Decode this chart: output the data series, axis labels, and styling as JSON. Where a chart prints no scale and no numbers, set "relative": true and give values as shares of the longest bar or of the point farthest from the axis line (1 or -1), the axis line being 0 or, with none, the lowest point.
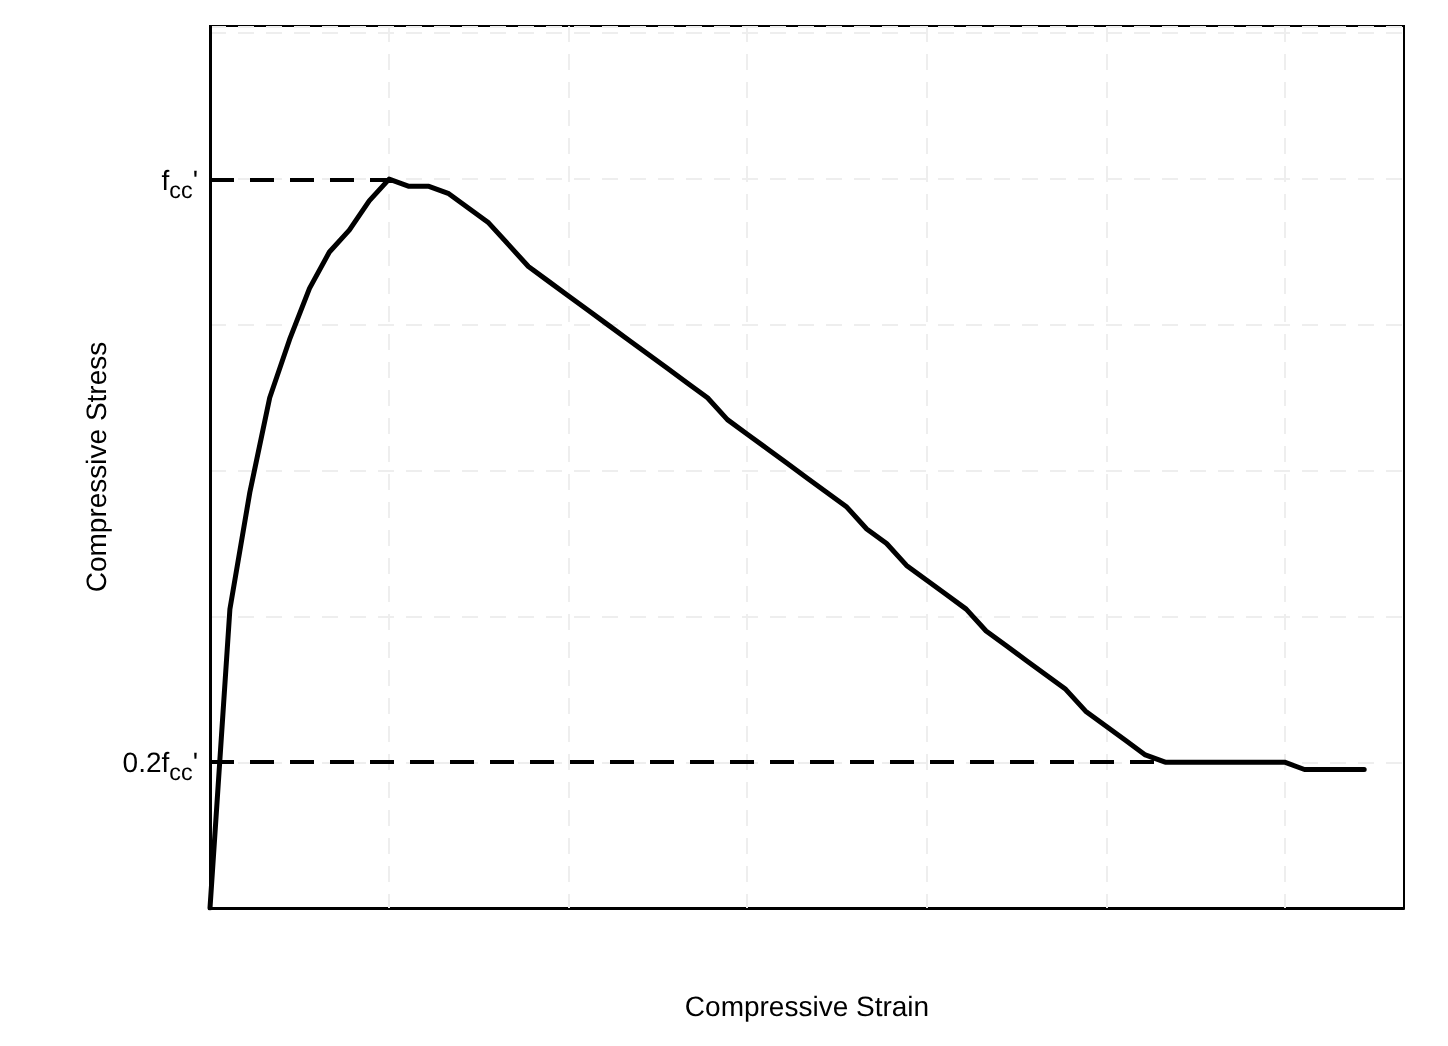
{
  "chart_data": {
    "type": "line",
    "xlabel": "Compressive Strain",
    "ylabel": "Compressive Stress",
    "categories": [
      null,
      null,
      null,
      null,
      null,
      null,
      null,
      null,
      null,
      null,
      null,
      null,
      null,
      null,
      null,
      null,
      null,
      null,
      null,
      null,
      null,
      null,
      null,
      null,
      null,
      null,
      null,
      null,
      null,
      null,
      null,
      null,
      null,
      null,
      null,
      null,
      null,
      null,
      null,
      null,
      null,
      null,
      null,
      null,
      null,
      null,
      null,
      null,
      null,
      null,
      null,
      null,
      null,
      null,
      null,
      null,
      null,
      null,
      null,
      null,
      null
    ],
    "series": [
      {
        "color": "#000000",
        "values": [
          0,
          0.41,
          0.57,
          0.7,
          0.78,
          0.85,
          0.9,
          0.93,
          0.97,
          1.0,
          0.99,
          0.99,
          0.98,
          0.96,
          0.94,
          0.91,
          0.88,
          0.86,
          0.84,
          0.82,
          0.8,
          0.78,
          0.76,
          0.74,
          0.72,
          0.7,
          0.67,
          0.65,
          0.63,
          0.61,
          0.59,
          0.57,
          0.55,
          0.52,
          0.5,
          0.47,
          0.45,
          0.43,
          0.41,
          0.38,
          0.36,
          0.34,
          0.32,
          0.3,
          0.27,
          0.25,
          0.23,
          0.21,
          0.2,
          0.2,
          0.2,
          0.2,
          0.2,
          0.2,
          0.2,
          0.19,
          0.19,
          0.19,
          0.19,
          null,
          null
        ]
      }
    ],
    "relative": true,
    "grid": true,
    "marker": "none",
    "line_style": "solid",
    "ref_lines": [
      {
        "axis": "y",
        "value": 1,
        "label": "f$_{cc}$'",
        "line_style": "dashed",
        "color": "#000000"
      },
      {
        "axis": "y",
        "value": 0.2,
        "label": "0.2f$_{cc}$'",
        "line_style": "dashed",
        "color": "#000000"
      }
    ]
  }
}
